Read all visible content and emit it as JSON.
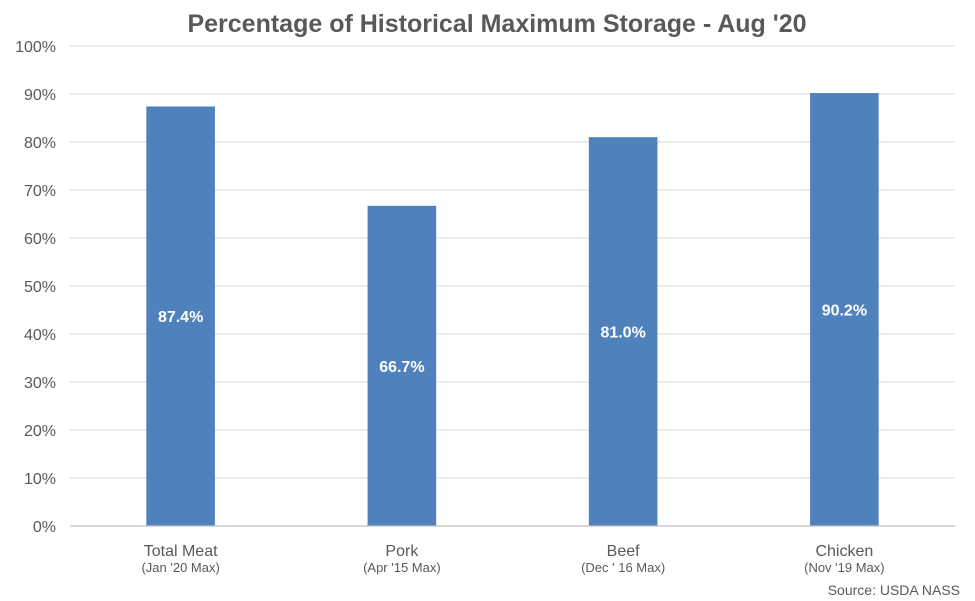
{
  "chart_data": {
    "type": "bar",
    "title": "Percentage of Historical Maximum Storage - Aug '20",
    "categories": [
      "Total Meat",
      "Pork",
      "Beef",
      "Chicken"
    ],
    "category_subtitles": [
      "(Jan '20 Max)",
      "(Apr '15 Max)",
      "(Dec ' 16 Max)",
      "(Nov '19 Max)"
    ],
    "values": [
      87.4,
      66.7,
      81.0,
      90.2
    ],
    "data_labels": [
      "87.4%",
      "66.7%",
      "81.0%",
      "90.2%"
    ],
    "ylim": [
      0,
      100
    ],
    "yticks": [
      0,
      10,
      20,
      30,
      40,
      50,
      60,
      70,
      80,
      90,
      100
    ],
    "ytick_labels": [
      "0%",
      "10%",
      "20%",
      "30%",
      "40%",
      "50%",
      "60%",
      "70%",
      "80%",
      "90%",
      "100%"
    ],
    "xlabel": "",
    "ylabel": "",
    "grid": true,
    "bar_color": "#4f81bd",
    "source": "Source: USDA NASS"
  }
}
